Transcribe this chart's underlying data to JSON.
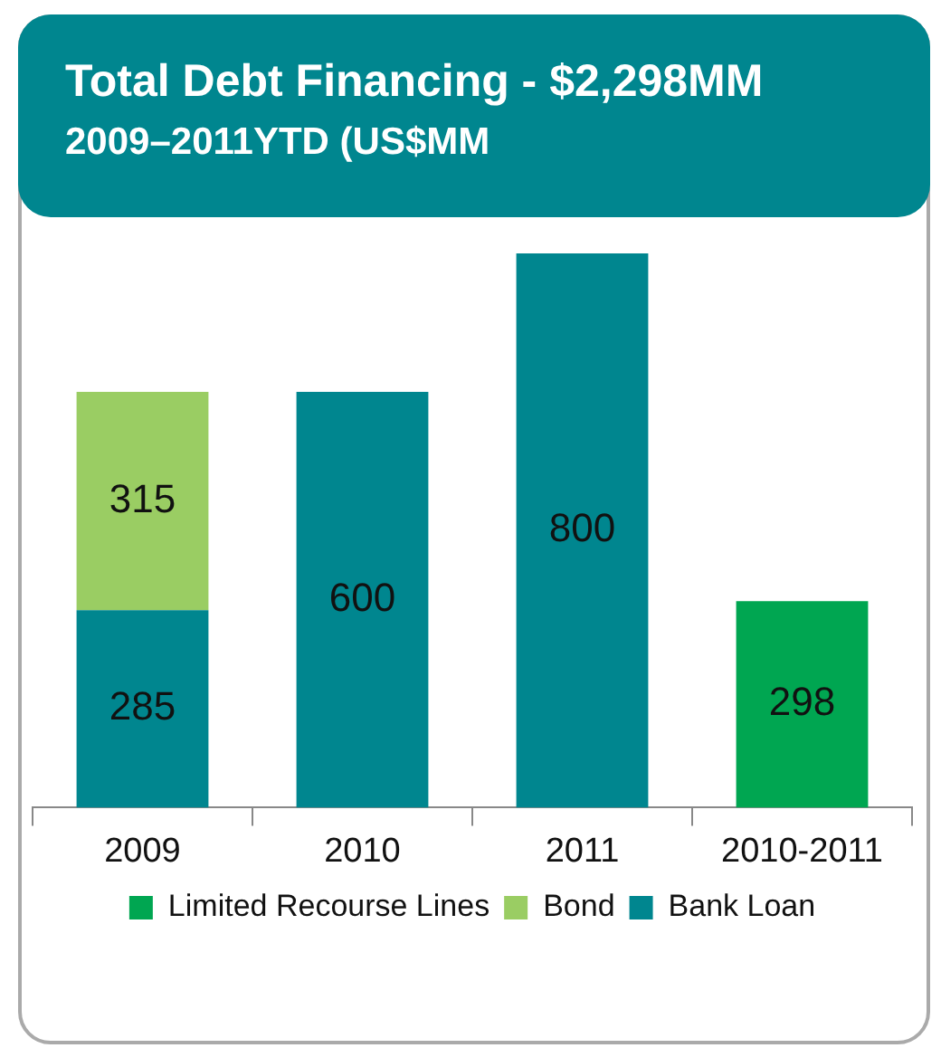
{
  "chart_data": {
    "type": "bar",
    "title": "Total Debt Financing - $2,298MM",
    "subtitle": "2009–2011YTD (US$MM",
    "categories": [
      "2009",
      "2010",
      "2011",
      "2010-2011"
    ],
    "stacked": true,
    "data_labels": true,
    "legend": "bottom",
    "grid": false,
    "series": [
      {
        "name": "Bank Loan",
        "color": "#00868f",
        "values": [
          285,
          600,
          800,
          null
        ]
      },
      {
        "name": "Bond",
        "color": "#9acd63",
        "values": [
          315,
          null,
          null,
          null
        ]
      },
      {
        "name": "Limited Recourse Lines",
        "color": "#00a651",
        "values": [
          null,
          null,
          null,
          298
        ]
      }
    ]
  }
}
